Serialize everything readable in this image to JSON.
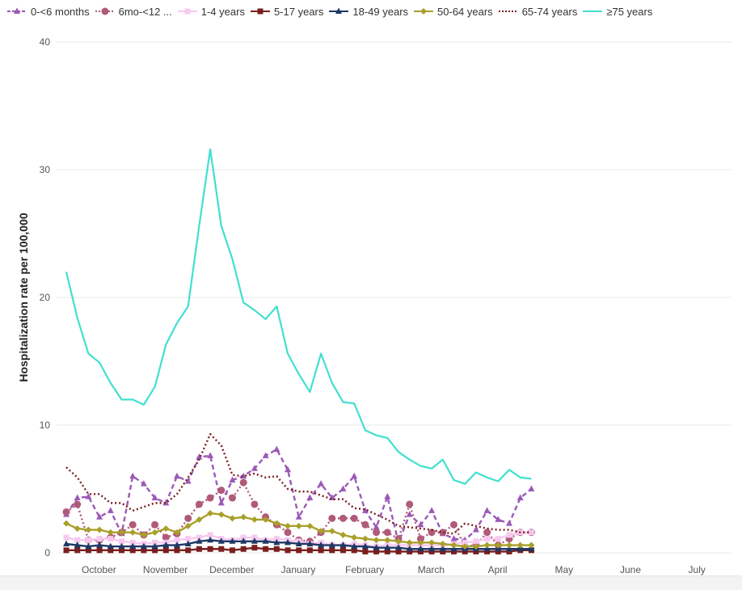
{
  "chart_data": {
    "type": "line",
    "xlabel": "",
    "ylabel": "Hospitalization rate per 100,000",
    "ylim": [
      0,
      40
    ],
    "yticks": [
      0,
      10,
      20,
      30,
      40
    ],
    "grid": true,
    "legend_position": "top",
    "x_month_labels": [
      "October",
      "November",
      "December",
      "January",
      "February",
      "March",
      "April",
      "May",
      "June",
      "July"
    ],
    "x_month_label_week_index": [
      2,
      8,
      14,
      20,
      26,
      32,
      38,
      44,
      50,
      56
    ],
    "n_weeks": 60,
    "dashed_from_week_index": 57,
    "series": [
      {
        "name": "0-<6 months",
        "color": "#9b59b6",
        "marker": "triangle",
        "dash": "dashed",
        "values": [
          3.0,
          4.3,
          4.4,
          2.8,
          3.3,
          1.5,
          6.0,
          5.4,
          4.3,
          3.9,
          6.0,
          5.6,
          7.5,
          7.6,
          3.9,
          5.7,
          6.0,
          6.6,
          7.6,
          8.1,
          6.5,
          2.8,
          4.3,
          5.4,
          4.3,
          5.0,
          6.0,
          3.3,
          2.0,
          4.4,
          0.8,
          3.0,
          2.2,
          3.3,
          1.5,
          1.1,
          1.0,
          1.8,
          3.3,
          2.6,
          2.3,
          4.3,
          5.0
        ]
      },
      {
        "name": "6mo-<12 ...",
        "color": "#b05a7a",
        "marker": "circle",
        "dash": "dotted",
        "values": [
          3.2,
          3.8,
          1.0,
          1.0,
          1.2,
          1.6,
          2.2,
          1.4,
          2.2,
          1.2,
          1.5,
          2.7,
          3.8,
          4.3,
          4.9,
          4.3,
          5.5,
          3.8,
          2.8,
          2.2,
          1.6,
          1.0,
          0.9,
          1.6,
          2.7,
          2.7,
          2.7,
          2.2,
          1.6,
          1.6,
          1.1,
          3.8,
          1.1,
          1.6,
          1.6,
          2.2,
          0.5,
          0.6,
          1.6,
          0.6,
          1.1,
          1.6,
          1.6
        ]
      },
      {
        "name": "1-4 years",
        "color": "#f7c9f0",
        "marker": "square",
        "dash": "solid",
        "values": [
          1.2,
          1.0,
          1.0,
          1.1,
          1.1,
          0.9,
          0.8,
          0.7,
          0.8,
          0.8,
          1.0,
          1.1,
          1.2,
          1.4,
          1.1,
          1.0,
          1.2,
          1.2,
          1.0,
          1.1,
          1.0,
          0.9,
          0.7,
          0.8,
          0.6,
          0.6,
          0.7,
          0.6,
          0.5,
          0.6,
          0.6,
          0.6,
          0.6,
          0.6,
          0.6,
          0.7,
          0.8,
          0.9,
          1.1,
          1.1,
          1.4,
          1.6,
          1.6
        ]
      },
      {
        "name": "5-17 years",
        "color": "#7a1f1f",
        "marker": "square",
        "dash": "solid",
        "values": [
          0.2,
          0.2,
          0.2,
          0.2,
          0.2,
          0.2,
          0.2,
          0.2,
          0.2,
          0.2,
          0.2,
          0.2,
          0.3,
          0.3,
          0.3,
          0.2,
          0.3,
          0.4,
          0.3,
          0.3,
          0.2,
          0.2,
          0.2,
          0.2,
          0.2,
          0.2,
          0.2,
          0.1,
          0.1,
          0.1,
          0.1,
          0.1,
          0.1,
          0.1,
          0.1,
          0.1,
          0.1,
          0.1,
          0.1,
          0.1,
          0.1,
          0.2,
          0.2
        ]
      },
      {
        "name": "18-49 years",
        "color": "#1f3864",
        "marker": "triangle",
        "dash": "solid",
        "values": [
          0.7,
          0.6,
          0.5,
          0.6,
          0.5,
          0.5,
          0.5,
          0.5,
          0.5,
          0.6,
          0.6,
          0.7,
          0.9,
          1.0,
          0.9,
          0.9,
          0.9,
          0.9,
          0.9,
          0.8,
          0.8,
          0.7,
          0.7,
          0.6,
          0.6,
          0.6,
          0.5,
          0.5,
          0.4,
          0.4,
          0.4,
          0.3,
          0.3,
          0.3,
          0.3,
          0.3,
          0.3,
          0.3,
          0.3,
          0.3,
          0.3,
          0.3,
          0.3
        ]
      },
      {
        "name": "50-64 years",
        "color": "#a8a029",
        "marker": "diamond",
        "dash": "solid",
        "values": [
          2.3,
          1.9,
          1.8,
          1.8,
          1.6,
          1.6,
          1.6,
          1.4,
          1.6,
          1.9,
          1.6,
          2.1,
          2.6,
          3.1,
          3.0,
          2.7,
          2.8,
          2.6,
          2.6,
          2.3,
          2.1,
          2.1,
          2.1,
          1.7,
          1.7,
          1.4,
          1.2,
          1.1,
          1.0,
          1.0,
          0.9,
          0.8,
          0.8,
          0.8,
          0.7,
          0.6,
          0.5,
          0.5,
          0.6,
          0.6,
          0.6,
          0.6,
          0.6
        ]
      },
      {
        "name": "65-74 years",
        "color": "#7a1f1f",
        "marker": "none",
        "dash": "dotted",
        "values": [
          6.7,
          5.9,
          4.6,
          4.6,
          3.9,
          3.9,
          3.3,
          3.6,
          3.9,
          3.9,
          4.6,
          5.9,
          7.3,
          9.3,
          8.4,
          6.1,
          6.0,
          6.2,
          5.9,
          6.0,
          5.0,
          4.8,
          4.8,
          4.5,
          4.2,
          4.2,
          3.5,
          3.4,
          3.0,
          2.6,
          2.1,
          2.0,
          1.9,
          1.8,
          1.6,
          1.5,
          2.3,
          2.1,
          1.9,
          1.8,
          1.8,
          1.6,
          1.6
        ]
      },
      {
        "name": "≥75 years",
        "color": "#40e0d0",
        "marker": "none",
        "dash": "solid",
        "values": [
          22.0,
          18.4,
          15.6,
          14.9,
          13.3,
          12.0,
          12.0,
          11.6,
          13.0,
          16.3,
          18.0,
          19.3,
          25.6,
          31.6,
          25.6,
          23.0,
          19.6,
          19.0,
          18.3,
          19.3,
          15.6,
          14.0,
          12.6,
          15.6,
          13.3,
          11.8,
          11.7,
          9.6,
          9.2,
          9.0,
          7.9,
          7.3,
          6.8,
          6.6,
          7.3,
          5.7,
          5.4,
          6.3,
          5.9,
          5.6,
          6.5,
          5.9,
          5.8
        ]
      }
    ]
  },
  "y_tick_labels": [
    "0",
    "10",
    "20",
    "30",
    "40"
  ]
}
